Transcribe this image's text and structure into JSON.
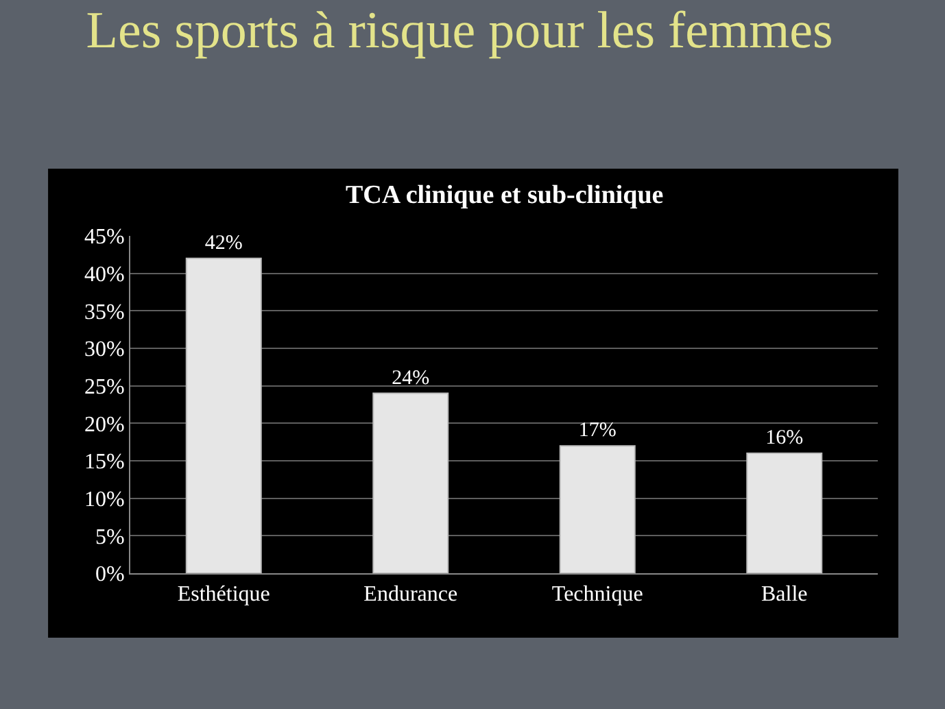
{
  "chart_data": {
    "type": "bar",
    "title": "Les sports à risque pour les femmes",
    "subtitle": "TCA clinique et sub-clinique",
    "categories": [
      "Esthétique",
      "Endurance",
      "Technique",
      "Balle"
    ],
    "values": [
      42,
      24,
      17,
      16
    ],
    "color": "#e6e6e6",
    "value_labels": [
      "42%",
      "24%",
      "17%",
      "16%"
    ],
    "ylim": [
      0,
      45
    ],
    "yticks": [
      {
        "value": 0,
        "label": "0%"
      },
      {
        "value": 5,
        "label": "5%"
      },
      {
        "value": 10,
        "label": "10%"
      },
      {
        "value": 15,
        "label": "15%"
      },
      {
        "value": 20,
        "label": "20%"
      },
      {
        "value": 25,
        "label": "25%"
      },
      {
        "value": 30,
        "label": "30%"
      },
      {
        "value": 35,
        "label": "35%"
      },
      {
        "value": 40,
        "label": "40%"
      },
      {
        "value": 45,
        "label": "45%"
      }
    ],
    "grid": "y",
    "legend": false
  }
}
